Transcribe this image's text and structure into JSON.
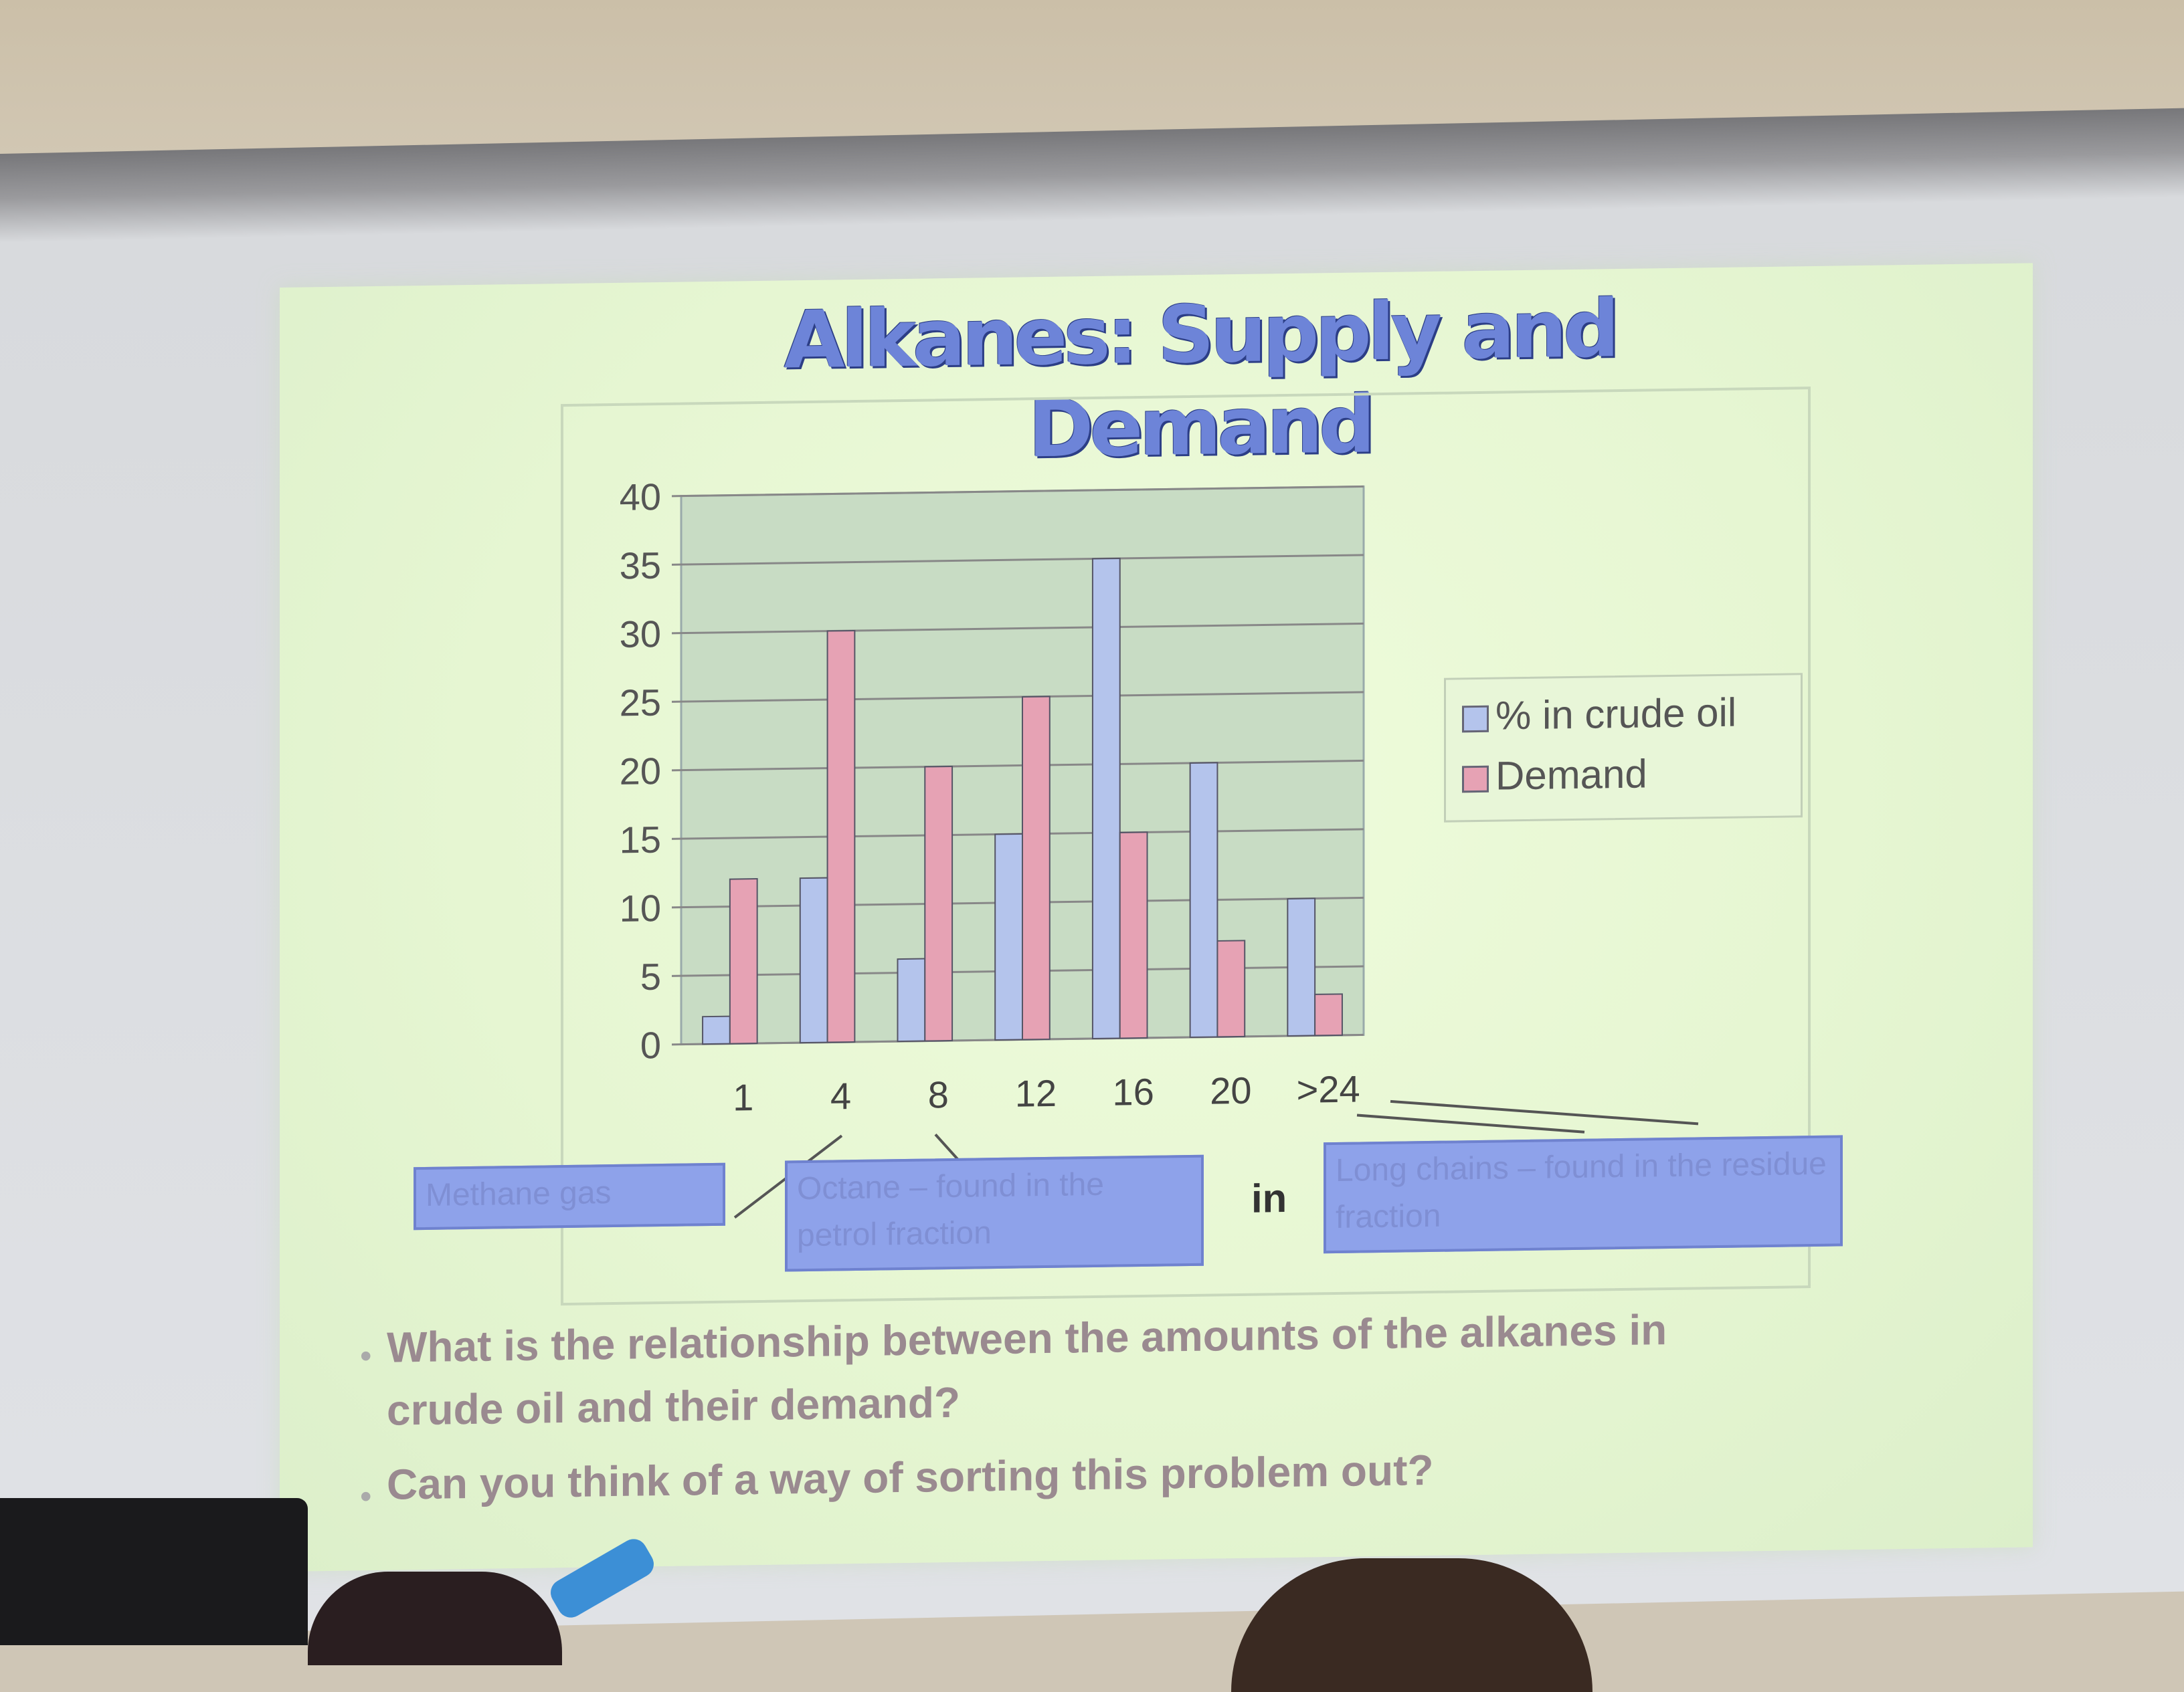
{
  "slide": {
    "title": "Alkanes: Supply and Demand",
    "x_axis_fragment": "in",
    "callouts": {
      "methane": "Methane gas",
      "octane": "Octane – found in the petrol fraction",
      "long_chains": "Long chains – found in the residue fraction"
    },
    "bullets": [
      "What is the relationship between the amounts of the alkanes in crude oil and their demand?",
      "Can you think of a way of sorting this problem out?"
    ]
  },
  "chart_data": {
    "type": "bar",
    "categories": [
      "1",
      "4",
      "8",
      "12",
      "16",
      "20",
      ">24"
    ],
    "ylim": [
      0,
      40
    ],
    "yticks": [
      "0",
      "5",
      "10",
      "15",
      "20",
      "25",
      "30",
      "35",
      "40"
    ],
    "grid": true,
    "legend_position": "right",
    "series": [
      {
        "name": "% in crude oil",
        "color": "#b4c4ec",
        "values": [
          2,
          12,
          6,
          15,
          35,
          20,
          10
        ]
      },
      {
        "name": "Demand",
        "color": "#e6a2b4",
        "values": [
          12,
          30,
          20,
          25,
          15,
          7,
          3
        ]
      }
    ]
  }
}
